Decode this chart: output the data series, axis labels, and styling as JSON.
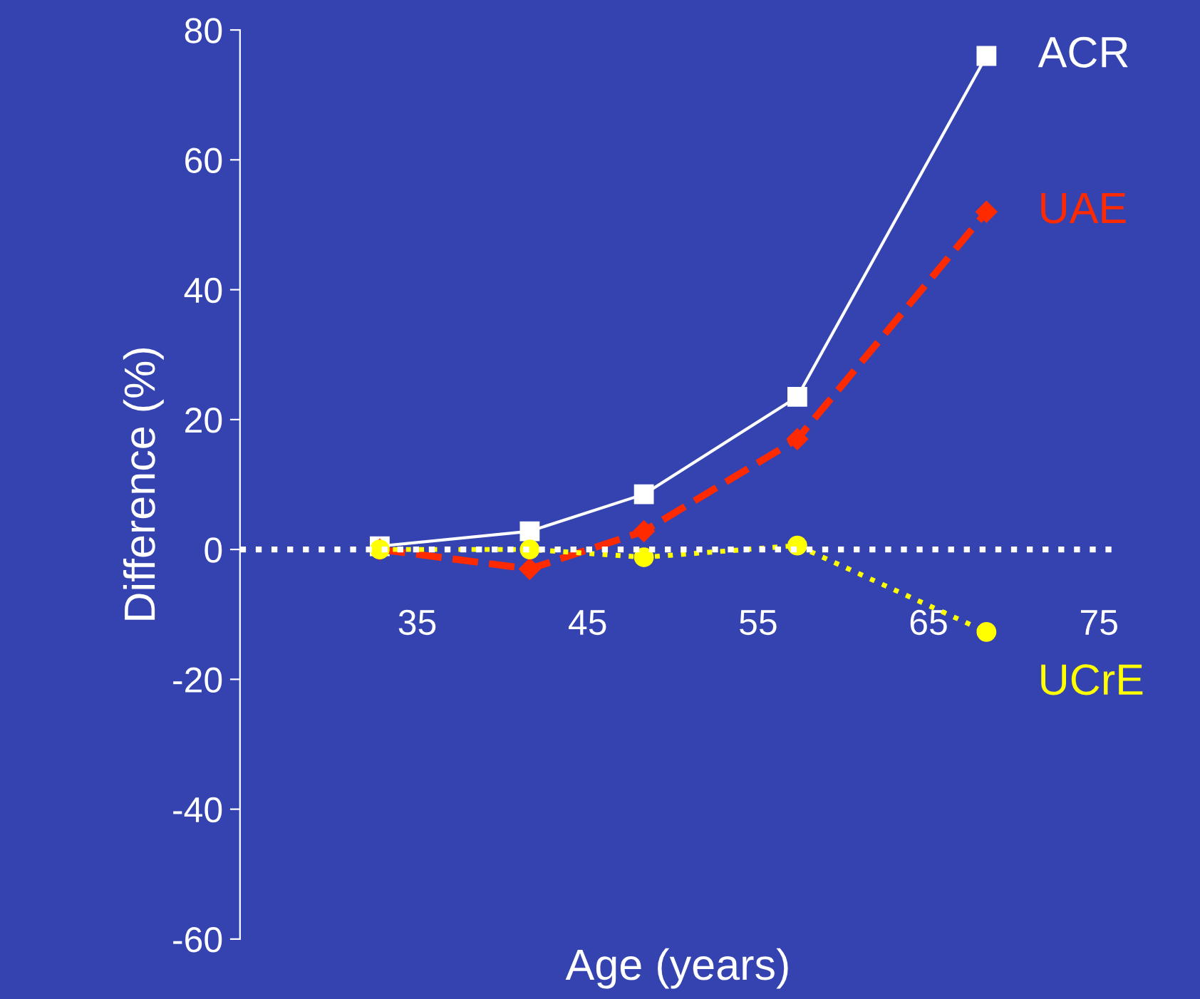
{
  "chart_data": {
    "type": "line",
    "xlabel": "Age (years)",
    "ylabel": "Difference (%)",
    "x": [
      32.8,
      41.6,
      48.3,
      57.3,
      68.4
    ],
    "xlim": [
      24.6,
      76
    ],
    "xticks": [
      35,
      45,
      55,
      65,
      75
    ],
    "ylim": [
      -60,
      80
    ],
    "yticks": [
      -60,
      -40,
      -20,
      0,
      20,
      40,
      60,
      80
    ],
    "grid": false,
    "legend": false,
    "ref_lines": [
      {
        "axis": "y",
        "value": 0,
        "color": "#ffffff",
        "line_style": "dotted"
      }
    ],
    "series": [
      {
        "name": "ACR",
        "color": "#ffffff",
        "marker": "square",
        "line_style": "solid",
        "values": [
          0.5,
          2.8,
          8.5,
          23.5,
          76
        ]
      },
      {
        "name": "UAE",
        "color": "#ff2a00",
        "marker": "diamond",
        "line_style": "dashed",
        "values": [
          0,
          -3,
          2.8,
          17,
          52
        ]
      },
      {
        "name": "UCrE",
        "color": "#ffff00",
        "marker": "circle",
        "line_style": "dotted",
        "values": [
          0,
          0,
          -1.2,
          0.6,
          -12.7
        ]
      }
    ]
  }
}
